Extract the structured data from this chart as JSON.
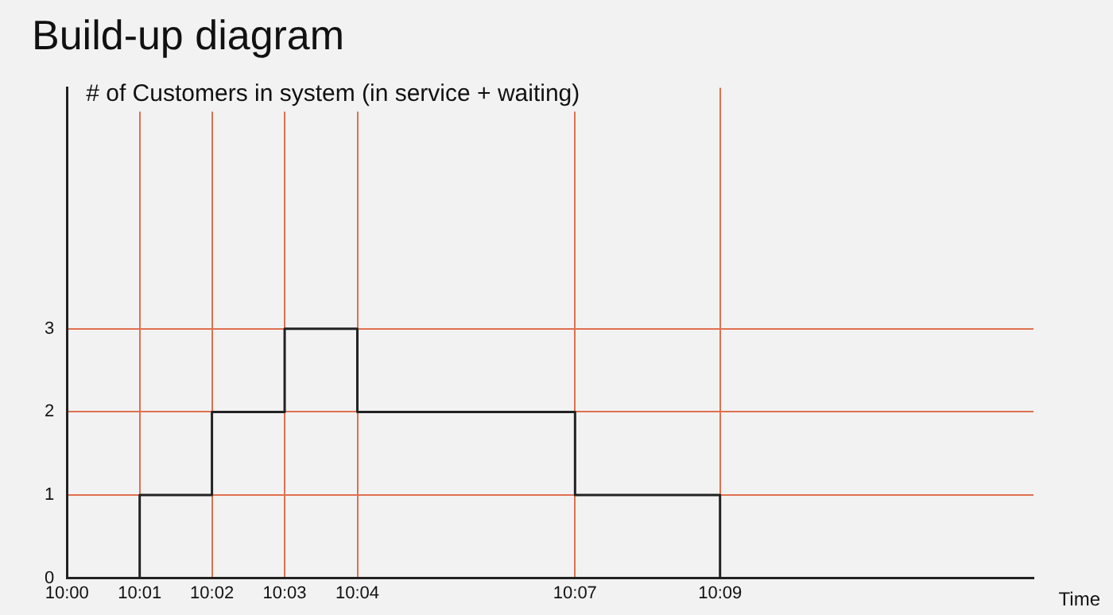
{
  "chart_data": {
    "type": "step",
    "title": "Build-up diagram",
    "ylabel": "# of Customers in system (in service + waiting)",
    "xlabel": "Time",
    "x": [
      10,
      10.0167,
      10.0333,
      10.05,
      10.0667,
      10.1167,
      10.15
    ],
    "values": [
      0,
      1,
      2,
      3,
      2,
      1,
      0
    ],
    "color": "#222222",
    "xlim": [
      10,
      10.222
    ],
    "xticks": [
      {
        "value": 10,
        "label": "10:00"
      },
      {
        "value": 10.0167,
        "label": "10:01"
      },
      {
        "value": 10.0333,
        "label": "10:02"
      },
      {
        "value": 10.05,
        "label": "10:03"
      },
      {
        "value": 10.0667,
        "label": "10:04"
      },
      {
        "value": 10.1167,
        "label": "10:07"
      },
      {
        "value": 10.15,
        "label": "10:09"
      }
    ],
    "ylim": [
      0,
      5.9
    ],
    "yticks": [
      0,
      1,
      2,
      3
    ],
    "grid": true,
    "line_style": "solid",
    "marker": "none",
    "legend": false
  }
}
